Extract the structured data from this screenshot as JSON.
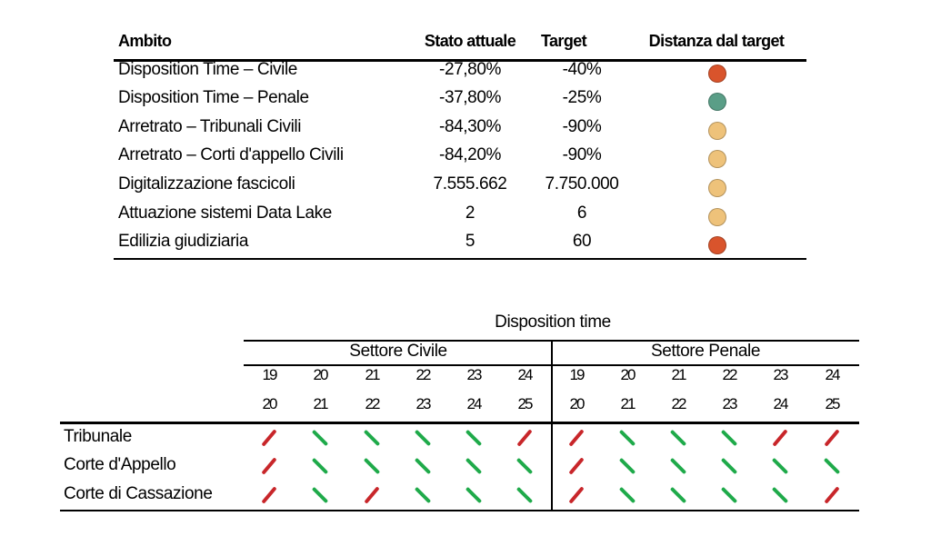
{
  "table1": {
    "headers": [
      "Ambito",
      "Stato attuale",
      "Target",
      "Distanza dal target"
    ],
    "rows": [
      {
        "ambito": "Disposition Time – Civile",
        "stato": "-27,80%",
        "target": "-40%",
        "status": "red",
        "color": "#d9542c"
      },
      {
        "ambito": "Disposition Time – Penale",
        "stato": "-37,80%",
        "target": "-25%",
        "status": "green",
        "color": "#5a9e87"
      },
      {
        "ambito": "Arretrato – Tribunali Civili",
        "stato": "-84,30%",
        "target": "-90%",
        "status": "yellow",
        "color": "#eec27a"
      },
      {
        "ambito": "Arretrato – Corti d'appello Civili",
        "stato": "-84,20%",
        "target": "-90%",
        "status": "yellow",
        "color": "#eec27a"
      },
      {
        "ambito": "Digitalizzazione fascicoli",
        "stato": "7.555.662",
        "target": "7.750.000",
        "status": "yellow",
        "color": "#eec27a"
      },
      {
        "ambito": "Attuazione sistemi Data Lake",
        "stato": "2",
        "target": "6",
        "status": "yellow",
        "color": "#eec27a"
      },
      {
        "ambito": "Edilizia giudiziaria",
        "stato": "5",
        "target": "60",
        "status": "red",
        "color": "#d9542c"
      }
    ]
  },
  "table2": {
    "title": "Disposition time",
    "sectors": [
      "Settore Civile",
      "Settore Penale"
    ],
    "years_top": [
      "19",
      "20",
      "21",
      "22",
      "23",
      "24"
    ],
    "years_bottom": [
      "20",
      "21",
      "22",
      "23",
      "24",
      "25"
    ],
    "colors": {
      "up": "#c8262a",
      "down": "#1faa4a"
    },
    "rows": [
      {
        "label": "Tribunale",
        "civile": [
          "up",
          "down",
          "down",
          "down",
          "down",
          "up"
        ],
        "penale": [
          "up",
          "down",
          "down",
          "down",
          "up",
          "up"
        ]
      },
      {
        "label": "Corte d'Appello",
        "civile": [
          "up",
          "down",
          "down",
          "down",
          "down",
          "down"
        ],
        "penale": [
          "up",
          "down",
          "down",
          "down",
          "down",
          "down"
        ]
      },
      {
        "label": "Corte di Cassazione",
        "civile": [
          "up",
          "down",
          "up",
          "down",
          "down",
          "down"
        ],
        "penale": [
          "up",
          "down",
          "down",
          "down",
          "down",
          "up"
        ]
      }
    ]
  }
}
